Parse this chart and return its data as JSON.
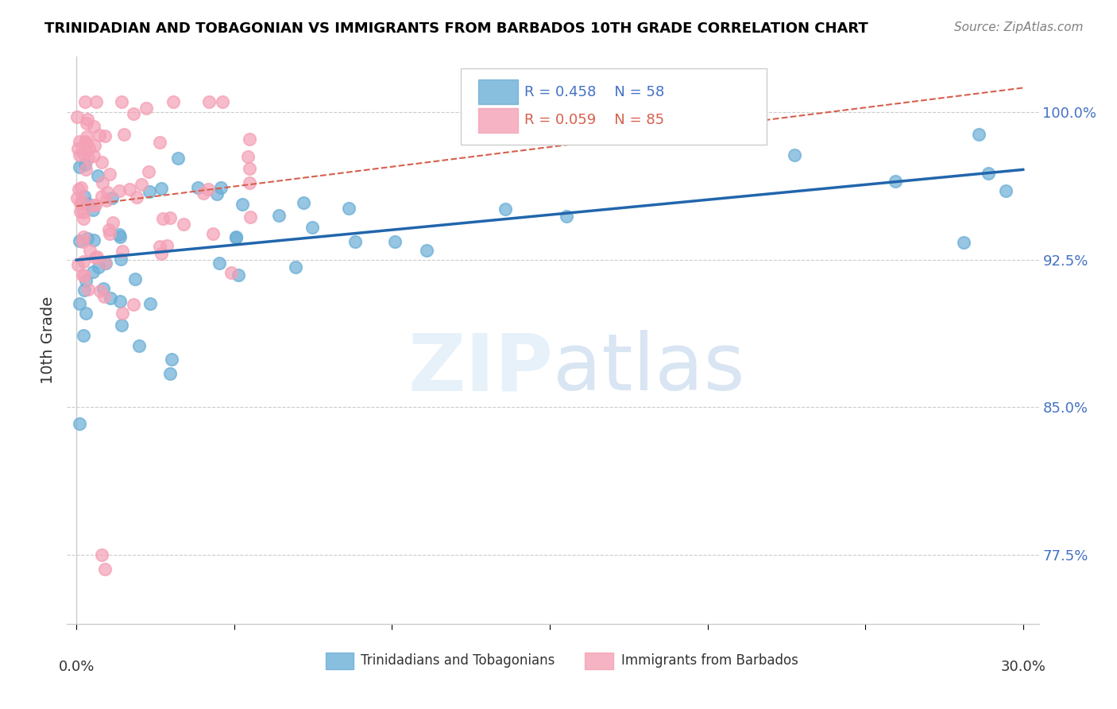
{
  "title": "TRINIDADIAN AND TOBAGONIAN VS IMMIGRANTS FROM BARBADOS 10TH GRADE CORRELATION CHART",
  "source": "Source: ZipAtlas.com",
  "ylabel": "10th Grade",
  "legend_blue_label": "Trinidadians and Tobagonians",
  "legend_pink_label": "Immigrants from Barbados",
  "blue_color": "#6baed6",
  "pink_color": "#f4a0b5",
  "trend_blue_color": "#2166ac",
  "trend_pink_color": "#d6604d",
  "legend_text_blue": "R = 0.458    N = 58",
  "legend_text_pink": "R = 0.059    N = 85",
  "legend_color_blue": "#4472C4",
  "legend_color_pink": "#d6604d",
  "ytick_vals": [
    0.775,
    0.85,
    0.925,
    1.0
  ],
  "ytick_labs": [
    "77.5%",
    "85.0%",
    "92.5%",
    "100.0%"
  ],
  "xlim": [
    -0.003,
    0.305
  ],
  "ylim": [
    0.74,
    1.028
  ]
}
